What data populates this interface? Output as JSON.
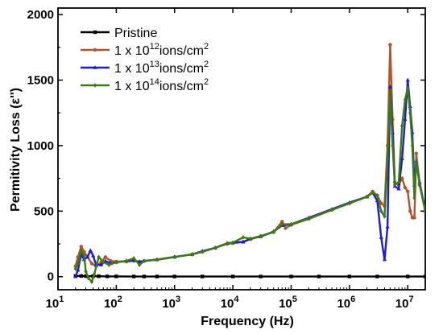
{
  "chart_data": {
    "type": "line",
    "xlabel": "Frequency (Hz)",
    "ylabel": "Permitivity Loss (ε'')",
    "xscale": "log",
    "xlim": [
      10,
      20000000
    ],
    "ylim": [
      -100,
      2050
    ],
    "yticks": [
      0,
      500,
      1000,
      1500,
      2000
    ],
    "xticks": [
      {
        "value": 10,
        "base": "10",
        "exp": "1"
      },
      {
        "value": 100,
        "base": "10",
        "exp": "2"
      },
      {
        "value": 1000,
        "base": "10",
        "exp": "3"
      },
      {
        "value": 10000,
        "base": "10",
        "exp": "4"
      },
      {
        "value": 100000,
        "base": "10",
        "exp": "5"
      },
      {
        "value": 1000000,
        "base": "10",
        "exp": "6"
      },
      {
        "value": 10000000,
        "base": "10",
        "exp": "7"
      }
    ],
    "legend_position": "top-left",
    "grid": false,
    "series": [
      {
        "name": "Pristine",
        "legend": {
          "pre": "Pristine",
          "sup": "",
          "post": ""
        },
        "color": "#000000",
        "marker": "square",
        "points": [
          [
            20,
            5
          ],
          [
            25,
            5
          ],
          [
            30,
            4
          ],
          [
            40,
            3
          ],
          [
            50,
            3
          ],
          [
            70,
            2
          ],
          [
            100,
            2
          ],
          [
            200,
            1
          ],
          [
            300,
            1
          ],
          [
            500,
            1
          ],
          [
            1000,
            1
          ],
          [
            3000,
            1
          ],
          [
            10000,
            1
          ],
          [
            30000,
            1
          ],
          [
            100000,
            1
          ],
          [
            300000,
            1
          ],
          [
            1000000,
            1
          ],
          [
            3000000,
            1
          ],
          [
            10000000,
            1
          ],
          [
            20000000,
            1
          ]
        ]
      },
      {
        "name": "1 x 10^12 ions/cm^2",
        "legend": {
          "pre": "1 x 10",
          "sup": "12",
          "post": "ions/cm",
          "sup2": "2"
        },
        "color": "#b5532a",
        "marker": "circle",
        "points": [
          [
            20,
            80
          ],
          [
            22,
            150
          ],
          [
            25,
            230
          ],
          [
            28,
            190
          ],
          [
            32,
            150
          ],
          [
            38,
            100
          ],
          [
            45,
            80
          ],
          [
            55,
            110
          ],
          [
            65,
            150
          ],
          [
            80,
            120
          ],
          [
            100,
            115
          ],
          [
            150,
            115
          ],
          [
            200,
            120
          ],
          [
            250,
            115
          ],
          [
            300,
            120
          ],
          [
            500,
            130
          ],
          [
            1000,
            150
          ],
          [
            2000,
            170
          ],
          [
            3000,
            190
          ],
          [
            5000,
            220
          ],
          [
            8000,
            250
          ],
          [
            10000,
            255
          ],
          [
            15000,
            265
          ],
          [
            20000,
            285
          ],
          [
            30000,
            310
          ],
          [
            50000,
            340
          ],
          [
            70000,
            420
          ],
          [
            80000,
            370
          ],
          [
            100000,
            395
          ],
          [
            200000,
            440
          ],
          [
            500000,
            510
          ],
          [
            1000000,
            560
          ],
          [
            2000000,
            610
          ],
          [
            2500000,
            650
          ],
          [
            3000000,
            620
          ],
          [
            3500000,
            560
          ],
          [
            4000000,
            540
          ],
          [
            4500000,
            1000
          ],
          [
            5000000,
            1770
          ],
          [
            5500000,
            1200
          ],
          [
            6000000,
            720
          ],
          [
            7000000,
            700
          ],
          [
            8000000,
            750
          ],
          [
            9000000,
            680
          ],
          [
            10000000,
            650
          ],
          [
            11000000,
            500
          ],
          [
            12000000,
            450
          ],
          [
            13000000,
            450
          ],
          [
            14000000,
            940
          ],
          [
            16000000,
            700
          ],
          [
            20000000,
            510
          ]
        ]
      },
      {
        "name": "1 x 10^13 ions/cm^2",
        "legend": {
          "pre": "1 x 10",
          "sup": "13",
          "post": "ions/cm",
          "sup2": "2"
        },
        "color": "#1a1ae0",
        "marker": "triangle",
        "points": [
          [
            20,
            0
          ],
          [
            22,
            50
          ],
          [
            25,
            170
          ],
          [
            28,
            130
          ],
          [
            32,
            150
          ],
          [
            36,
            200
          ],
          [
            40,
            160
          ],
          [
            45,
            90
          ],
          [
            55,
            90
          ],
          [
            65,
            120
          ],
          [
            80,
            100
          ],
          [
            100,
            110
          ],
          [
            150,
            120
          ],
          [
            200,
            125
          ],
          [
            250,
            110
          ],
          [
            300,
            120
          ],
          [
            500,
            130
          ],
          [
            1000,
            150
          ],
          [
            2000,
            170
          ],
          [
            3000,
            195
          ],
          [
            5000,
            220
          ],
          [
            8000,
            255
          ],
          [
            10000,
            260
          ],
          [
            15000,
            265
          ],
          [
            20000,
            290
          ],
          [
            30000,
            305
          ],
          [
            50000,
            345
          ],
          [
            70000,
            390
          ],
          [
            100000,
            400
          ],
          [
            200000,
            450
          ],
          [
            500000,
            515
          ],
          [
            1000000,
            565
          ],
          [
            2000000,
            610
          ],
          [
            2500000,
            640
          ],
          [
            3000000,
            580
          ],
          [
            3500000,
            300
          ],
          [
            4000000,
            130
          ],
          [
            4500000,
            380
          ],
          [
            5000000,
            1450
          ],
          [
            5500000,
            1100
          ],
          [
            6000000,
            690
          ],
          [
            7000000,
            670
          ],
          [
            8000000,
            900
          ],
          [
            9000000,
            1200
          ],
          [
            10000000,
            1500
          ],
          [
            11000000,
            1300
          ],
          [
            12000000,
            1100
          ],
          [
            13000000,
            700
          ],
          [
            14000000,
            880
          ],
          [
            16000000,
            720
          ],
          [
            20000000,
            500
          ]
        ]
      },
      {
        "name": "1 x 10^14 ions/cm^2",
        "legend": {
          "pre": "1 x 10",
          "sup": "14",
          "post": "ions/cm",
          "sup2": "2"
        },
        "color": "#3d7a12",
        "marker": "diamond",
        "points": [
          [
            20,
            60
          ],
          [
            22,
            100
          ],
          [
            25,
            200
          ],
          [
            28,
            160
          ],
          [
            30,
            40
          ],
          [
            33,
            -10
          ],
          [
            38,
            -40
          ],
          [
            42,
            20
          ],
          [
            50,
            150
          ],
          [
            60,
            110
          ],
          [
            75,
            90
          ],
          [
            100,
            110
          ],
          [
            150,
            120
          ],
          [
            200,
            140
          ],
          [
            250,
            90
          ],
          [
            300,
            120
          ],
          [
            500,
            130
          ],
          [
            1000,
            150
          ],
          [
            2000,
            170
          ],
          [
            3000,
            190
          ],
          [
            5000,
            220
          ],
          [
            8000,
            255
          ],
          [
            10000,
            260
          ],
          [
            15000,
            300
          ],
          [
            20000,
            290
          ],
          [
            30000,
            310
          ],
          [
            50000,
            340
          ],
          [
            70000,
            400
          ],
          [
            100000,
            400
          ],
          [
            200000,
            445
          ],
          [
            500000,
            510
          ],
          [
            1000000,
            560
          ],
          [
            2000000,
            610
          ],
          [
            2500000,
            640
          ],
          [
            3000000,
            620
          ],
          [
            3500000,
            500
          ],
          [
            4000000,
            460
          ],
          [
            4500000,
            900
          ],
          [
            5000000,
            1420
          ],
          [
            5500000,
            1000
          ],
          [
            6000000,
            700
          ],
          [
            7000000,
            720
          ],
          [
            8000000,
            1150
          ],
          [
            9000000,
            1350
          ],
          [
            10000000,
            1440
          ],
          [
            11000000,
            1250
          ],
          [
            12000000,
            1000
          ],
          [
            13000000,
            600
          ],
          [
            14000000,
            880
          ],
          [
            16000000,
            700
          ],
          [
            20000000,
            500
          ]
        ]
      }
    ]
  }
}
